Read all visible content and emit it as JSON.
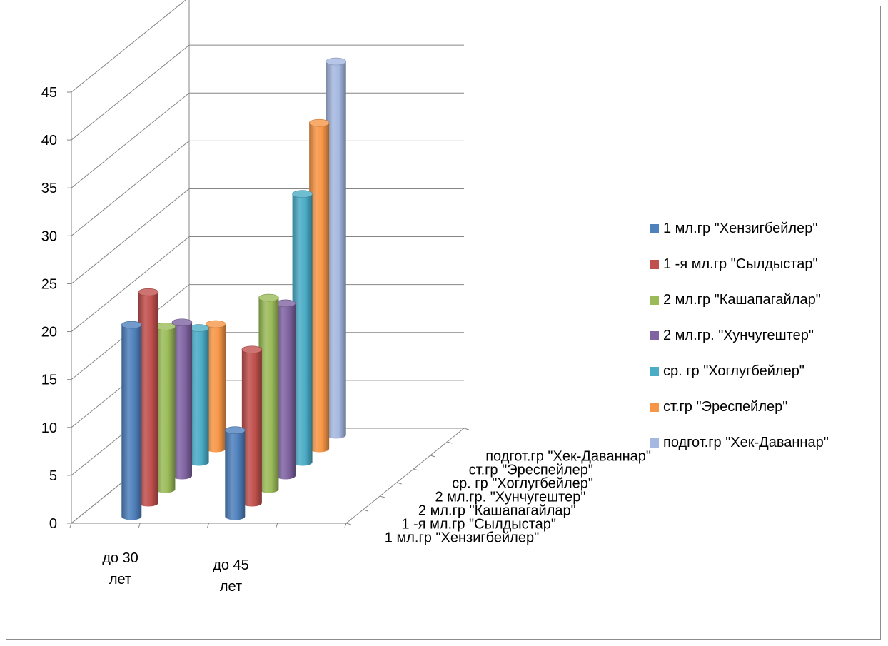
{
  "chart_data": {
    "type": "bar",
    "title": "",
    "xlabel": "",
    "ylabel": "",
    "ylim": [
      0,
      45
    ],
    "y_ticks": [
      "0",
      "5",
      "10",
      "15",
      "20",
      "25",
      "30",
      "35",
      "40",
      "45"
    ],
    "categories": [
      "до 30 лет",
      "до 45 лет"
    ],
    "category_lines": [
      [
        "до 30",
        "лет"
      ],
      [
        "до 45",
        "лет"
      ]
    ],
    "depth_labels": [
      "1 мл.гр \"Хензигбейлер\"",
      "1 -я мл.гр \"Сылдыстар\"",
      "2 мл.гр \"Кашапагайлар\"",
      "2 мл.гр. \"Хунчугештер\"",
      "ср. гр \"Хоглугбейлер\"",
      "ст.гр \"Эреспейлер\"",
      "подгот.гр \"Хек-Даваннар\""
    ],
    "series": [
      {
        "name": "1 мл.гр \"Хензигбейлер\"",
        "color": "#4f81bd",
        "values": [
          20,
          9
        ]
      },
      {
        "name": "1 -я мл.гр \"Сылдыстар\"",
        "color": "#c0504d",
        "values": [
          22,
          16
        ]
      },
      {
        "name": "2 мл.гр \"Кашапагайлар\"",
        "color": "#9bbb59",
        "values": [
          17,
          20
        ]
      },
      {
        "name": "2 мл.гр. \"Хунчугештер\"",
        "color": "#8064a2",
        "values": [
          16,
          18
        ]
      },
      {
        "name": "ср. гр \"Хоглугбейлер\"",
        "color": "#4bacc6",
        "values": [
          14,
          28
        ]
      },
      {
        "name": "ст.гр \"Эреспейлер\"",
        "color": "#f79646",
        "values": [
          13,
          34
        ]
      },
      {
        "name": "подгот.гр \"Хек-Даваннар\"",
        "color": "#a5b8e0",
        "values": [
          0,
          39
        ]
      }
    ],
    "grid": true,
    "legend_position": "right"
  }
}
